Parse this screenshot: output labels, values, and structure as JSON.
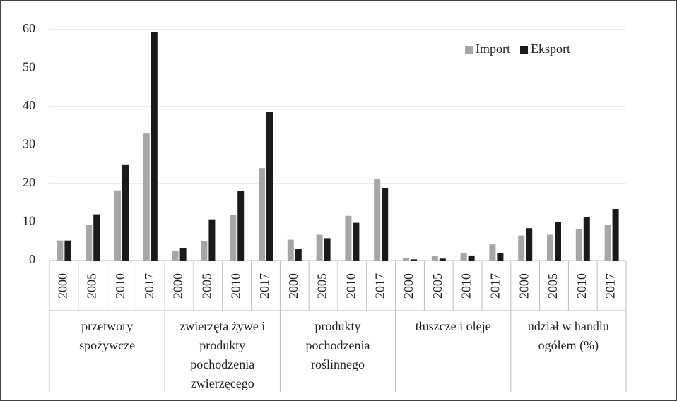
{
  "chart_data": {
    "type": "bar",
    "groups": [
      "przetwory spożywcze",
      "zwierzęta żywe i produkty pochodzenia zwierzęcego",
      "produkty pochodzenia roślinnego",
      "tłuszcze i oleje",
      "udział w handlu ogółem (%)"
    ],
    "categories": [
      "2000",
      "2005",
      "2010",
      "2017",
      "2000",
      "2005",
      "2010",
      "2017",
      "2000",
      "2005",
      "2010",
      "2017",
      "2000",
      "2005",
      "2010",
      "2017",
      "2000",
      "2005",
      "2010",
      "2017"
    ],
    "series": [
      {
        "name": "Import",
        "color": "#a6a6a6",
        "values": [
          5.2,
          9.3,
          18.2,
          33,
          2.5,
          5,
          11.8,
          24,
          5.4,
          6.7,
          11.6,
          21.2,
          0.7,
          1.1,
          2.0,
          4.2,
          6.5,
          6.7,
          8.1,
          9.3
        ]
      },
      {
        "name": "Eksport",
        "color": "#1a1a1a",
        "values": [
          5.2,
          12,
          24.8,
          59.3,
          3.3,
          10.7,
          18,
          38.6,
          3,
          5.8,
          9.8,
          18.9,
          0.3,
          0.5,
          1.3,
          1.9,
          8.4,
          10,
          11.2,
          13.4
        ]
      }
    ],
    "ylim": [
      0,
      60
    ],
    "yticks": [
      0,
      10,
      20,
      30,
      40,
      50,
      60
    ],
    "grid": true,
    "legend": "top-right"
  }
}
